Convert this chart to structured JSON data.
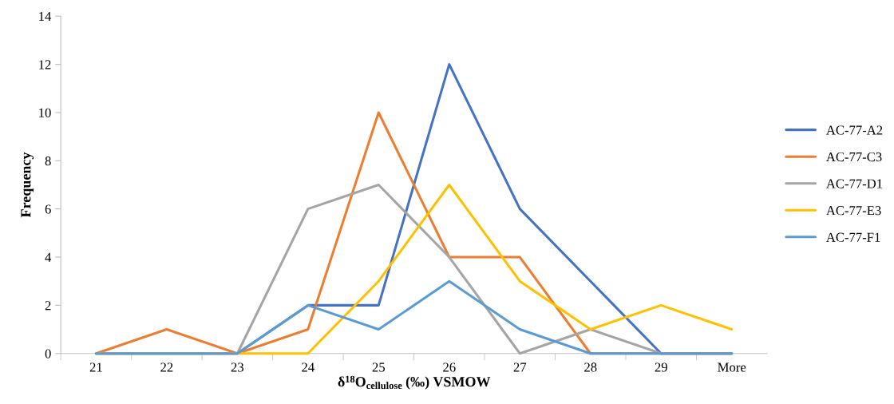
{
  "chart_data": {
    "type": "line",
    "xlabel": "δ$^{18}$O$_{cellulose}$ (‰) VSMOW",
    "ylabel": "Frequency",
    "categories": [
      "21",
      "22",
      "23",
      "24",
      "25",
      "26",
      "27",
      "28",
      "29",
      "More"
    ],
    "series": [
      {
        "name": "AC-77-A2",
        "color": "#4472c4",
        "values": [
          0,
          0,
          0,
          2,
          2,
          12,
          6,
          3,
          0,
          0
        ]
      },
      {
        "name": "AC-77-C3",
        "color": "#ed7d31",
        "values": [
          0,
          1,
          0,
          1,
          10,
          4,
          4,
          0,
          0,
          0
        ]
      },
      {
        "name": "AC-77-D1",
        "color": "#a5a5a5",
        "values": [
          0,
          0,
          0,
          6,
          7,
          4,
          0,
          1,
          0,
          0
        ]
      },
      {
        "name": "AC-77-E3",
        "color": "#ffc000",
        "values": [
          0,
          0,
          0,
          0,
          3,
          7,
          3,
          1,
          2,
          1
        ]
      },
      {
        "name": "AC-77-F1",
        "color": "#5b9bd5",
        "values": [
          0,
          0,
          0,
          2,
          1,
          3,
          1,
          0,
          0,
          0
        ]
      }
    ],
    "ylim": [
      0,
      14
    ],
    "yticks": [
      0,
      2,
      4,
      6,
      8,
      10,
      12,
      14
    ],
    "grid": false,
    "legend": "right",
    "marker": "none",
    "line_style": "solid"
  }
}
